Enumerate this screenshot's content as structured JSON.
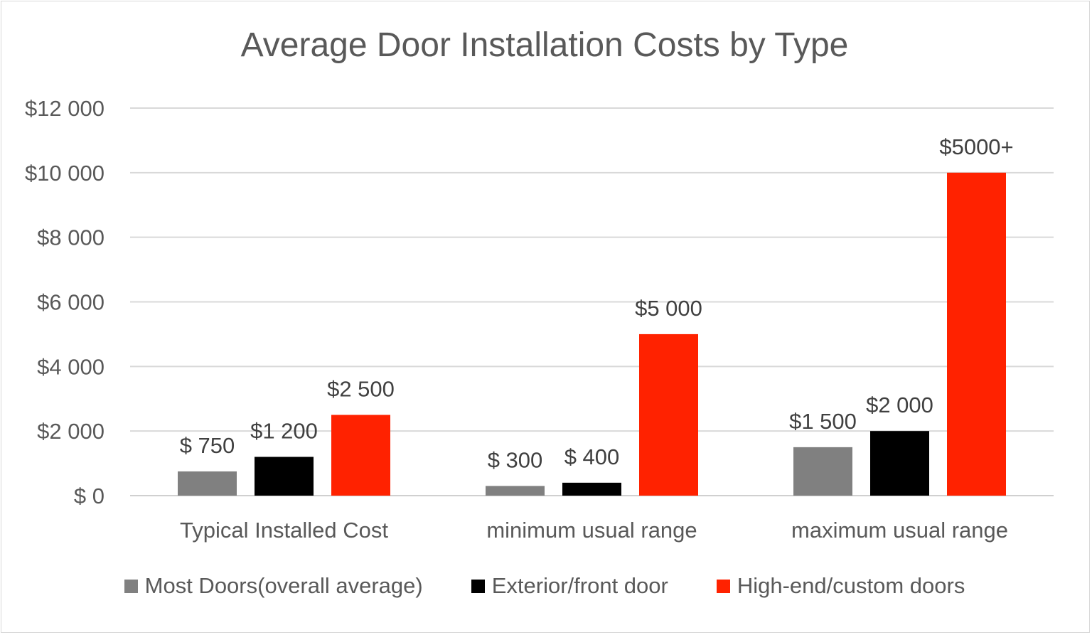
{
  "chart_data": {
    "type": "bar",
    "title": "Average Door Installation Costs by Type",
    "xlabel": "",
    "ylabel": "",
    "categories": [
      "Typical Installed Cost",
      "minimum usual range",
      "maximum usual range"
    ],
    "series": [
      {
        "name": "Most Doors(overall average)",
        "color": "#808080",
        "values": [
          750,
          300,
          1500
        ],
        "labels": [
          "$ 750",
          "$ 300",
          "$1 500"
        ]
      },
      {
        "name": "Exterior/front door",
        "color": "#000000",
        "values": [
          1200,
          400,
          2000
        ],
        "labels": [
          "$1 200",
          "$ 400",
          "$2 000"
        ]
      },
      {
        "name": "High-end/custom doors",
        "color": "#ff2200",
        "values": [
          2500,
          5000,
          10000
        ],
        "labels": [
          "$2 500",
          "$5 000",
          "$5000+"
        ]
      }
    ],
    "ylim": [
      0,
      12000
    ],
    "yticks": [
      0,
      2000,
      4000,
      6000,
      8000,
      10000,
      12000
    ],
    "ytick_labels": [
      "$ 0",
      "$2 000",
      "$4 000",
      "$6 000",
      "$8 000",
      "$10 000",
      "$12 000"
    ],
    "grid": true,
    "legend_position": "bottom"
  }
}
